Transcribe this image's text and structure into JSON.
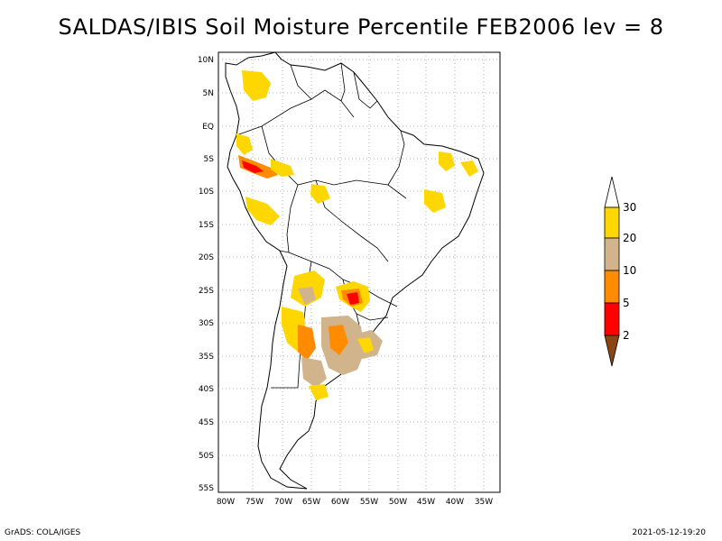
{
  "title": "SALDAS/IBIS Soil Moisture Percentile FEB2006 lev = 8",
  "footer": {
    "left": "GrADS: COLA/IGES",
    "right": "2021-05-12-19:20"
  },
  "map": {
    "lat_labels": [
      "10N",
      "5N",
      "EQ",
      "5S",
      "10S",
      "15S",
      "20S",
      "25S",
      "30S",
      "35S",
      "40S",
      "45S",
      "50S",
      "55S"
    ],
    "lon_labels": [
      "80W",
      "75W",
      "70W",
      "65W",
      "60W",
      "55W",
      "50W",
      "45W",
      "40W",
      "35W"
    ],
    "grid": true
  },
  "legend": {
    "labels": [
      "30",
      "20",
      "10",
      "5",
      "2"
    ],
    "colors": {
      "above_30": "#ffffff",
      "c20_30": "#ffd700",
      "c10_20": "#d2b48c",
      "c5_10": "#ff8c00",
      "c2_5": "#ff0000",
      "below_2": "#8b4513"
    }
  }
}
